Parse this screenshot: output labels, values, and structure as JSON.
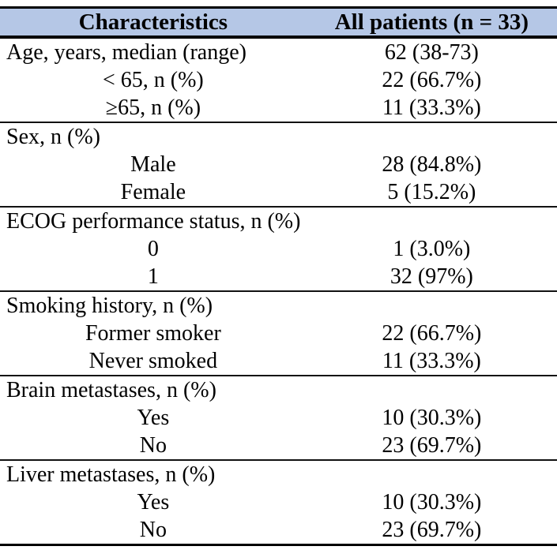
{
  "table": {
    "title_hint": "Patient baseline characteristics table",
    "colors": {
      "header_bg": "#b5c7e6",
      "border": "#000000",
      "text": "#000000"
    },
    "header": {
      "col1": "Characteristics",
      "col2": "All patients (n = 33)"
    },
    "rows": [
      {
        "label": "Age, years, median (range)",
        "value": "62 (38-73)"
      },
      {
        "label": "< 65, n (%)",
        "value": "22 (66.7%)"
      },
      {
        "label": "≥65, n (%)",
        "value": "11 (33.3%)"
      },
      {
        "label": "Sex, n (%)",
        "value": ""
      },
      {
        "label": "Male",
        "value": "28 (84.8%)"
      },
      {
        "label": "Female",
        "value": "5 (15.2%)"
      },
      {
        "label": "ECOG performance status, n (%)",
        "value": ""
      },
      {
        "label": "0",
        "value": "1 (3.0%)"
      },
      {
        "label": "1",
        "value": "32 (97%)"
      },
      {
        "label": "Smoking history, n (%)",
        "value": ""
      },
      {
        "label": "Former smoker",
        "value": "22 (66.7%)"
      },
      {
        "label": "Never smoked",
        "value": "11 (33.3%)"
      },
      {
        "label": "Brain metastases, n (%)",
        "value": ""
      },
      {
        "label": "Yes",
        "value": "10 (30.3%)"
      },
      {
        "label": "No",
        "value": "23 (69.7%)"
      },
      {
        "label": "Liver metastases, n (%)",
        "value": ""
      },
      {
        "label": "Yes",
        "value": "10 (30.3%)"
      },
      {
        "label": "No",
        "value": "23 (69.7%)"
      }
    ]
  }
}
